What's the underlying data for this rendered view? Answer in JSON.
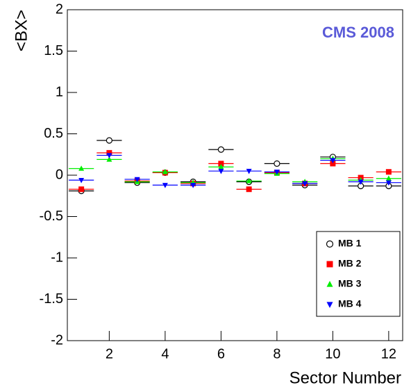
{
  "chart_data": {
    "type": "scatter",
    "ylabel": "<BX>",
    "xlabel": "Sector Number",
    "annotation": "CMS 2008",
    "x": [
      1,
      2,
      3,
      4,
      5,
      6,
      7,
      8,
      9,
      10,
      11,
      12
    ],
    "xlim": [
      0.5,
      12.5
    ],
    "xticks": [
      2,
      4,
      6,
      8,
      10,
      12
    ],
    "ylim": [
      -2,
      2
    ],
    "yticks": [
      -2,
      -1.5,
      -1,
      -0.5,
      0,
      0.5,
      1,
      1.5,
      2
    ],
    "legend": "lower right",
    "series": [
      {
        "name": "MB 1",
        "color": "#000000",
        "marker": "open-circle",
        "xerr": 0.45,
        "values": [
          -0.19,
          0.42,
          -0.09,
          0.03,
          -0.08,
          0.31,
          -0.08,
          0.14,
          -0.12,
          0.22,
          -0.13,
          -0.13
        ]
      },
      {
        "name": "MB 2",
        "color": "#ff0000",
        "marker": "square",
        "xerr": 0.45,
        "values": [
          -0.17,
          0.27,
          -0.07,
          0.03,
          -0.1,
          0.14,
          -0.17,
          0.03,
          -0.1,
          0.14,
          -0.03,
          0.04
        ]
      },
      {
        "name": "MB 3",
        "color": "#00ee00",
        "marker": "triangle-up",
        "xerr": 0.45,
        "values": [
          0.08,
          0.19,
          -0.08,
          0.04,
          -0.09,
          0.1,
          -0.07,
          0.02,
          -0.08,
          0.2,
          -0.06,
          -0.04
        ]
      },
      {
        "name": "MB 4",
        "color": "#0000ff",
        "marker": "triangle-down",
        "xerr": 0.45,
        "values": [
          -0.06,
          0.24,
          -0.05,
          -0.12,
          -0.12,
          0.05,
          0.05,
          0.04,
          -0.1,
          0.18,
          -0.08,
          -0.09
        ]
      }
    ]
  }
}
